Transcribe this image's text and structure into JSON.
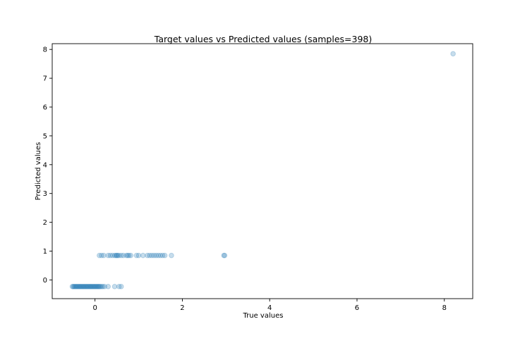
{
  "chart_data": {
    "type": "scatter",
    "title": "Target values vs Predicted values (samples=398)",
    "xlabel": "True values",
    "ylabel": "Predicted values",
    "xlim": [
      -0.98,
      8.65
    ],
    "ylim": [
      -0.65,
      8.2
    ],
    "xticks": [
      "0",
      "2",
      "4",
      "6",
      "8"
    ],
    "yticks": [
      "0",
      "1",
      "2",
      "3",
      "4",
      "5",
      "6",
      "7",
      "8"
    ],
    "grid": false,
    "legend": "none",
    "point_color": "#1f77b4",
    "point_alpha": 0.25,
    "clusters": [
      {
        "predicted": -0.23,
        "x": [
          -0.52,
          -0.5,
          -0.48,
          -0.46,
          -0.44,
          -0.42,
          -0.4,
          -0.38,
          -0.36,
          -0.34,
          -0.32,
          -0.3,
          -0.28,
          -0.26,
          -0.24,
          -0.22,
          -0.2,
          -0.18,
          -0.16,
          -0.14,
          -0.12,
          -0.1,
          -0.08,
          -0.06,
          -0.04,
          -0.02,
          0.0,
          0.02,
          0.04,
          0.06,
          0.08,
          0.1,
          0.12,
          0.15,
          0.18,
          0.22,
          0.3,
          0.45,
          0.55,
          0.6
        ]
      },
      {
        "predicted": 0.85,
        "x": [
          0.1,
          0.15,
          0.2,
          0.3,
          0.35,
          0.4,
          0.45,
          0.48,
          0.5,
          0.52,
          0.55,
          0.6,
          0.65,
          0.72,
          0.75,
          0.78,
          0.82,
          0.95,
          1.0,
          1.1,
          1.2,
          1.25,
          1.3,
          1.35,
          1.4,
          1.45,
          1.5,
          1.55,
          1.6,
          1.75,
          2.95,
          2.97
        ]
      },
      {
        "predicted": 7.85,
        "x": [
          8.2
        ]
      }
    ]
  }
}
